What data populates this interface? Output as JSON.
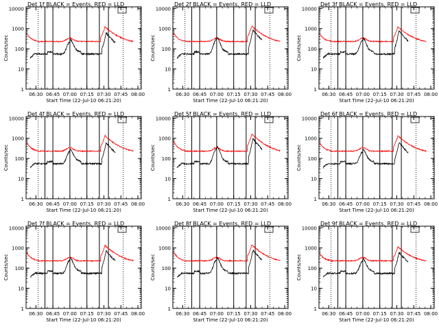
{
  "chart_data": [
    {
      "type": "line",
      "title": "Det 1f  BLACK = Events, RED = LLD",
      "ylabel": "Counts/sec",
      "xlabel": "Start Time (22-Jul-10 06:21:20)",
      "black_variant": 1,
      "red_variant": 1
    },
    {
      "type": "line",
      "title": "Det 2f  BLACK = Events, RED = LLD",
      "ylabel": "Counts/sec",
      "xlabel": "Start Time (22-Jul-10 06:21:20)",
      "black_variant": 1.5,
      "red_variant": 1.1
    },
    {
      "type": "line",
      "title": "Det 3f  BLACK = Events, RED = LLD",
      "ylabel": "Counts/sec",
      "xlabel": "Start Time (22-Jul-10 06:21:20)",
      "black_variant": 1.3,
      "red_variant": 1.0
    },
    {
      "type": "line",
      "title": "Det 4f  BLACK = Events, RED = LLD",
      "ylabel": "Counts/sec",
      "xlabel": "Start Time (22-Jul-10 06:21:20)",
      "black_variant": 1.0,
      "red_variant": 1.1
    },
    {
      "type": "line",
      "title": "Det 5f  BLACK = Events, RED = LLD",
      "ylabel": "Counts/sec",
      "xlabel": "Start Time (22-Jul-10 06:21:20)",
      "black_variant": 1.6,
      "red_variant": 1.4
    },
    {
      "type": "line",
      "title": "Det 6f  BLACK = Events, RED = LLD",
      "ylabel": "Counts/sec",
      "xlabel": "Start Time (22-Jul-10 06:21:20)",
      "black_variant": 1.0,
      "red_variant": 1.1
    },
    {
      "type": "line",
      "title": "Det 7f  BLACK = Events, RED = LLD",
      "ylabel": "Counts/sec",
      "xlabel": "Start Time (22-Jul-10 06:21:20)",
      "black_variant": 1.2,
      "red_variant": 1.1
    },
    {
      "type": "line",
      "title": "Det 8f  BLACK = Events, RED = LLD",
      "ylabel": "Counts/sec",
      "xlabel": "Start Time (22-Jul-10 06:21:20)",
      "black_variant": 1.3,
      "red_variant": 1.2
    },
    {
      "type": "line",
      "title": "Det 9f  BLACK = Events, RED = LLD",
      "ylabel": "Counts/sec",
      "xlabel": "Start Time (22-Jul-10 06:21:20)",
      "black_variant": 1.0,
      "red_variant": 0.9
    }
  ],
  "shared_axes": {
    "x_tick_labels": [
      "06:30",
      "06:45",
      "07:00",
      "07:15",
      "07:30",
      "07:45",
      "08:00"
    ],
    "x_tick_minutes": [
      390,
      405,
      420,
      435,
      450,
      465,
      480
    ],
    "xlim_minutes": [
      381.33,
      483
    ],
    "y_tick_labels": [
      "1",
      "10",
      "100",
      "1000",
      "10000"
    ],
    "y_tick_values": [
      1,
      10,
      100,
      1000,
      10000
    ],
    "ylim": [
      1,
      12000
    ],
    "y_scale": "log",
    "dotted_lines_minutes": [
      392,
      467,
      482
    ],
    "solid_lines_minutes": [
      398,
      405,
      420,
      435,
      446,
      454
    ]
  },
  "series_style": {
    "events_color": "#000000",
    "lld_color": "#ff0000"
  }
}
